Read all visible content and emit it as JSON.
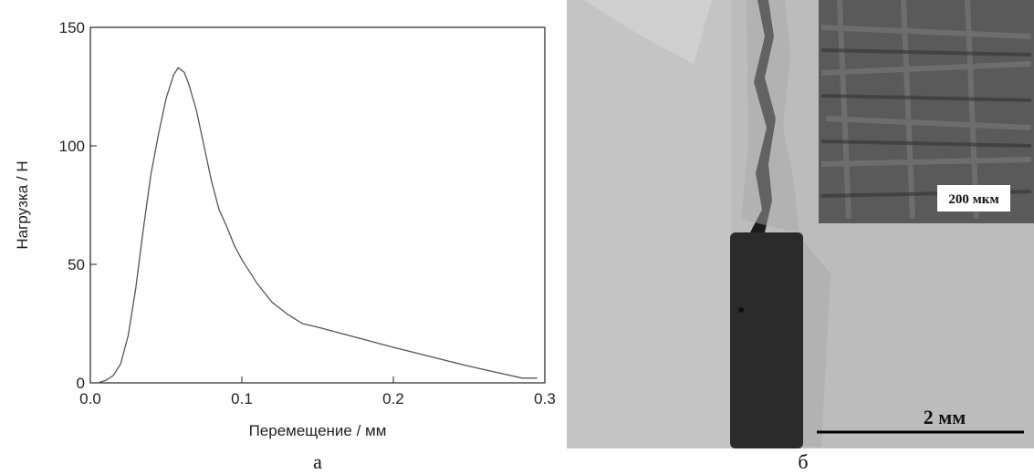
{
  "chart_data": {
    "type": "line",
    "xlabel": "Перемещение /  мм",
    "ylabel": "Нагрузка / Н",
    "x": [
      0.005,
      0.01,
      0.015,
      0.02,
      0.025,
      0.03,
      0.035,
      0.04,
      0.045,
      0.05,
      0.055,
      0.058,
      0.062,
      0.065,
      0.07,
      0.075,
      0.08,
      0.085,
      0.09,
      0.095,
      0.1,
      0.11,
      0.12,
      0.13,
      0.14,
      0.15,
      0.2,
      0.25,
      0.285,
      0.295
    ],
    "series": [
      {
        "color": "#555555",
        "values": [
          0,
          1,
          3,
          8,
          20,
          40,
          65,
          88,
          105,
          120,
          130,
          133,
          131,
          126,
          115,
          100,
          85,
          73,
          66,
          58,
          52,
          42,
          34,
          29,
          25,
          23.5,
          15,
          7,
          2,
          2
        ]
      }
    ],
    "xlim": [
      0,
      0.3
    ],
    "ylim": [
      0,
      150
    ],
    "xticks": [
      {
        "value": 0,
        "label": "0.0"
      },
      0.1,
      0.2,
      0.3
    ],
    "yticks": [
      0,
      50,
      100,
      150
    ]
  },
  "image": {
    "inset_scale": "200 мкм",
    "scale": "2 мм"
  },
  "panel_labels": [
    "а",
    "б"
  ]
}
